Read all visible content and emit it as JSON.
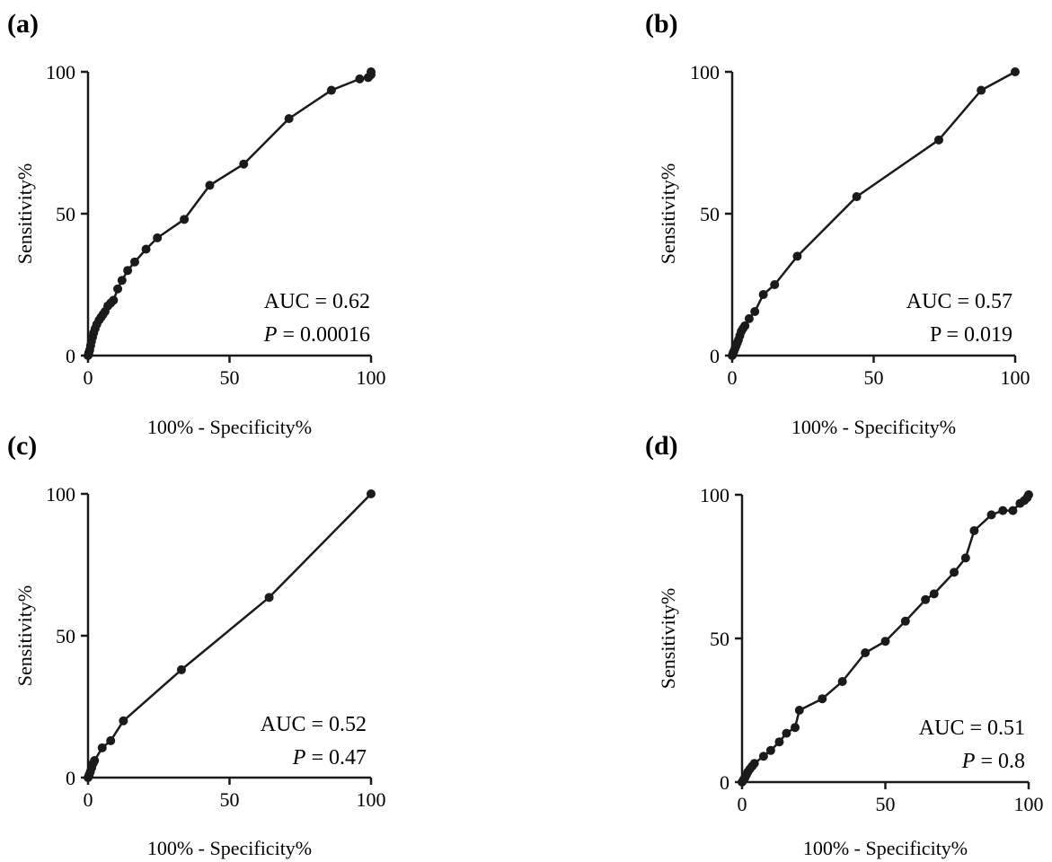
{
  "chart_data": [
    {
      "panel": "(a)",
      "type": "line",
      "xlabel": "100% - Specificity%",
      "ylabel": "Sensitivity%",
      "xlim": [
        0,
        100
      ],
      "ylim": [
        0,
        100
      ],
      "xticks": [
        "0",
        "50",
        "100"
      ],
      "yticks": [
        "0",
        "50",
        "100"
      ],
      "grid": false,
      "annotation": {
        "auc": "AUC = 0.62",
        "p_symbol": "P",
        "p_value": " = 0.00016"
      },
      "series": [
        {
          "x": [
            0,
            0.3,
            0.6,
            0.9,
            1.2,
            1.6,
            2.0,
            2.5,
            3.1,
            3.9,
            4.6,
            5.3,
            6.0,
            7.0,
            8.0,
            9.0,
            10.5,
            12.0,
            14.0,
            16.5,
            20.5,
            24.5,
            34.0,
            43.0,
            55.0,
            71.0,
            86.0,
            96.0,
            99.0,
            100,
            100
          ],
          "y": [
            0,
            1.0,
            2.0,
            3.5,
            5.0,
            6.5,
            8.0,
            9.5,
            11.0,
            12.5,
            13.5,
            14.5,
            15.5,
            17.5,
            18.5,
            19.5,
            23.5,
            26.5,
            30.0,
            33.0,
            37.5,
            41.5,
            48.0,
            60.0,
            67.5,
            83.5,
            93.5,
            97.5,
            98.0,
            99.0,
            100
          ]
        }
      ]
    },
    {
      "panel": "(b)",
      "type": "line",
      "xlabel": "100% - Specificity%",
      "ylabel": "Sensitivity%",
      "xlim": [
        0,
        100
      ],
      "ylim": [
        0,
        100
      ],
      "xticks": [
        "0",
        "50",
        "100"
      ],
      "yticks": [
        "0",
        "50",
        "100"
      ],
      "grid": false,
      "annotation": {
        "auc": "AUC = 0.57",
        "p_symbol": "",
        "p_value": "P = 0.019"
      },
      "series": [
        {
          "x": [
            0,
            0.3,
            0.6,
            1.0,
            1.4,
            1.8,
            2.2,
            2.7,
            3.2,
            3.8,
            4.5,
            6.0,
            8.0,
            11.0,
            15.0,
            23.0,
            44.0,
            73.0,
            88.0,
            100
          ],
          "y": [
            0,
            0.8,
            1.5,
            2.5,
            3.5,
            4.5,
            5.5,
            7.0,
            8.5,
            9.5,
            10.5,
            13.0,
            15.5,
            21.5,
            25.0,
            35.0,
            56.0,
            76.0,
            93.5,
            100
          ]
        }
      ]
    },
    {
      "panel": "(c)",
      "type": "line",
      "xlabel": "100% - Specificity%",
      "ylabel": "Sensitivity%",
      "xlim": [
        0,
        100
      ],
      "ylim": [
        0,
        100
      ],
      "xticks": [
        "0",
        "50",
        "100"
      ],
      "yticks": [
        "0",
        "50",
        "100"
      ],
      "grid": false,
      "annotation": {
        "auc": "AUC = 0.52",
        "p_symbol": "P",
        "p_value": " = 0.47"
      },
      "series": [
        {
          "x": [
            0,
            0.4,
            0.8,
            1.3,
            1.8,
            2.3,
            5.0,
            8.0,
            12.5,
            33.0,
            64.0,
            100
          ],
          "y": [
            0,
            1.0,
            2.0,
            3.5,
            5.0,
            6.0,
            10.5,
            13.0,
            20.0,
            38.0,
            63.5,
            100
          ]
        }
      ]
    },
    {
      "panel": "(d)",
      "type": "line",
      "xlabel": "100% - Specificity%",
      "ylabel": "Sensitivity%",
      "xlim": [
        0,
        100
      ],
      "ylim": [
        0,
        100
      ],
      "xticks": [
        "0",
        "50",
        "100"
      ],
      "yticks": [
        "0",
        "50",
        "100"
      ],
      "grid": false,
      "annotation": {
        "auc": "AUC = 0.51",
        "p_symbol": "P",
        "p_value": " = 0.8"
      },
      "series": [
        {
          "x": [
            0,
            0.5,
            1.0,
            1.5,
            2.0,
            2.7,
            3.5,
            4.3,
            7.5,
            10.0,
            13.0,
            15.5,
            18.5,
            20.0,
            28.0,
            35.0,
            43.0,
            50.0,
            57.0,
            64.0,
            67.0,
            74.0,
            78.0,
            81.0,
            87.0,
            91.0,
            94.5,
            97.0,
            98.5,
            99.5,
            100
          ],
          "y": [
            0,
            0.8,
            1.5,
            2.5,
            3.5,
            4.5,
            5.5,
            6.5,
            9.0,
            11.0,
            14.0,
            17.0,
            19.0,
            25.0,
            29.0,
            35.0,
            45.0,
            49.0,
            56.0,
            63.5,
            65.5,
            73.0,
            78.0,
            87.5,
            93.0,
            94.5,
            94.5,
            97.0,
            98.0,
            99.0,
            100
          ]
        }
      ]
    }
  ]
}
